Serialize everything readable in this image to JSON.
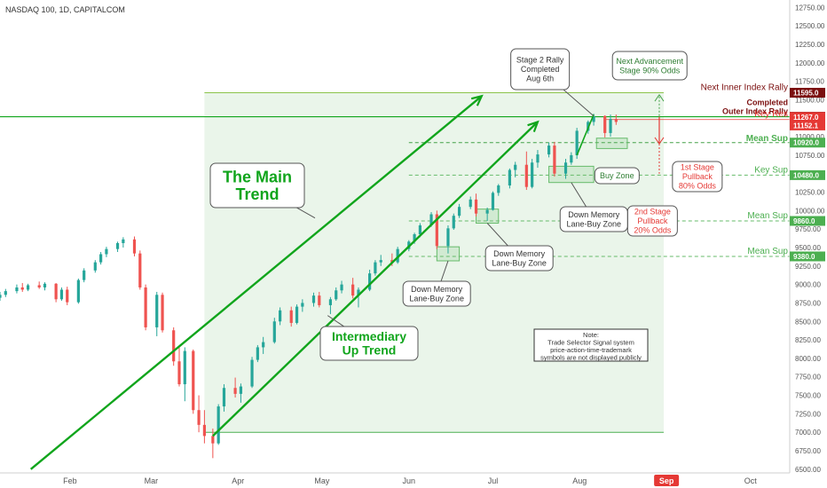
{
  "header": {
    "symbol": "NASDAQ 100, 1D, CAPITALCOM"
  },
  "chart_data": {
    "type": "candlestick",
    "symbol": "NASDAQ 100",
    "interval": "1D",
    "source": "CAPITALCOM",
    "y_axis": {
      "range": [
        6450,
        12850
      ],
      "ticks": [
        6500,
        6750,
        7000,
        7250,
        7500,
        7750,
        8000,
        8250,
        8500,
        8750,
        9000,
        9250,
        9500,
        9750,
        10000,
        10250,
        10500,
        10750,
        11000,
        11250,
        11500,
        11750,
        12000,
        12250,
        12500,
        12750
      ]
    },
    "x_axis": {
      "months": [
        {
          "label": "Feb",
          "date": "2020-02-01"
        },
        {
          "label": "Mar",
          "date": "2020-03-01"
        },
        {
          "label": "Apr",
          "date": "2020-04-01"
        },
        {
          "label": "May",
          "date": "2020-05-01"
        },
        {
          "label": "Jun",
          "date": "2020-06-01"
        },
        {
          "label": "Jul",
          "date": "2020-07-01"
        },
        {
          "label": "Aug",
          "date": "2020-08-01"
        },
        {
          "label": "Sep",
          "date": "2020-09-01"
        },
        {
          "label": "Oct",
          "date": "2020-10-01"
        }
      ],
      "highlighted_month": "Sep",
      "start_date": "2020-01-07",
      "end_date": "2020-10-15"
    },
    "candles": [
      [
        "2020-01-07",
        8820,
        8900,
        8780,
        8860
      ],
      [
        "2020-01-09",
        8860,
        8940,
        8830,
        8910
      ],
      [
        "2020-01-13",
        8910,
        9000,
        8880,
        8960
      ],
      [
        "2020-01-15",
        8960,
        9020,
        8900,
        8930
      ],
      [
        "2020-01-17",
        8930,
        9010,
        8910,
        8990
      ],
      [
        "2020-01-21",
        8990,
        9040,
        8940,
        8960
      ],
      [
        "2020-01-23",
        8960,
        9030,
        8920,
        9010
      ],
      [
        "2020-01-27",
        9010,
        9020,
        8760,
        8800
      ],
      [
        "2020-01-29",
        8800,
        8960,
        8780,
        8930
      ],
      [
        "2020-01-31",
        8930,
        8970,
        8720,
        8760
      ],
      [
        "2020-02-04",
        8760,
        9080,
        8740,
        9060
      ],
      [
        "2020-02-06",
        9060,
        9220,
        9030,
        9190
      ],
      [
        "2020-02-10",
        9190,
        9330,
        9160,
        9300
      ],
      [
        "2020-02-12",
        9300,
        9440,
        9270,
        9410
      ],
      [
        "2020-02-14",
        9410,
        9510,
        9370,
        9480
      ],
      [
        "2020-02-18",
        9480,
        9580,
        9440,
        9560
      ],
      [
        "2020-02-20",
        9560,
        9640,
        9500,
        9610
      ],
      [
        "2020-02-24",
        9610,
        9650,
        9380,
        9420
      ],
      [
        "2020-02-26",
        9420,
        9460,
        8930,
        8960
      ],
      [
        "2020-02-28",
        8960,
        9000,
        8380,
        8420
      ],
      [
        "2020-03-03",
        8420,
        8900,
        8300,
        8860
      ],
      [
        "2020-03-05",
        8860,
        8890,
        8350,
        8380
      ],
      [
        "2020-03-09",
        8380,
        8420,
        7900,
        7960
      ],
      [
        "2020-03-11",
        7960,
        8150,
        7620,
        7650
      ],
      [
        "2020-03-13",
        7650,
        8150,
        7420,
        8100
      ],
      [
        "2020-03-16",
        8100,
        8120,
        7250,
        7300
      ],
      [
        "2020-03-18",
        7300,
        7500,
        7000,
        7100
      ],
      [
        "2020-03-20",
        7100,
        7300,
        6850,
        6950
      ],
      [
        "2020-03-23",
        6950,
        7050,
        6650,
        6850
      ],
      [
        "2020-03-25",
        6850,
        7380,
        6830,
        7350
      ],
      [
        "2020-03-27",
        7350,
        7650,
        7280,
        7600
      ],
      [
        "2020-03-31",
        7600,
        7740,
        7470,
        7520
      ],
      [
        "2020-04-02",
        7520,
        7660,
        7400,
        7620
      ],
      [
        "2020-04-06",
        7620,
        8020,
        7600,
        7980
      ],
      [
        "2020-04-08",
        7980,
        8180,
        7950,
        8150
      ],
      [
        "2020-04-10",
        8150,
        8290,
        8060,
        8220
      ],
      [
        "2020-04-14",
        8220,
        8550,
        8200,
        8500
      ],
      [
        "2020-04-16",
        8500,
        8690,
        8450,
        8650
      ],
      [
        "2020-04-20",
        8650,
        8700,
        8430,
        8480
      ],
      [
        "2020-04-22",
        8480,
        8730,
        8460,
        8700
      ],
      [
        "2020-04-24",
        8700,
        8800,
        8630,
        8750
      ],
      [
        "2020-04-28",
        8750,
        8890,
        8700,
        8850
      ],
      [
        "2020-04-30",
        8850,
        8900,
        8690,
        8720
      ],
      [
        "2020-05-04",
        8720,
        8830,
        8600,
        8800
      ],
      [
        "2020-05-06",
        8800,
        8960,
        8780,
        8920
      ],
      [
        "2020-05-08",
        8920,
        9050,
        8880,
        9000
      ],
      [
        "2020-05-12",
        9000,
        9090,
        8810,
        8850
      ],
      [
        "2020-05-14",
        8850,
        8960,
        8690,
        8930
      ],
      [
        "2020-05-18",
        8930,
        9200,
        8910,
        9150
      ],
      [
        "2020-05-20",
        9150,
        9330,
        9120,
        9300
      ],
      [
        "2020-05-22",
        9300,
        9400,
        9250,
        9330
      ],
      [
        "2020-05-26",
        9330,
        9420,
        9250,
        9300
      ],
      [
        "2020-05-28",
        9300,
        9510,
        9280,
        9480
      ],
      [
        "2020-06-01",
        9480,
        9600,
        9450,
        9580
      ],
      [
        "2020-06-03",
        9580,
        9700,
        9550,
        9680
      ],
      [
        "2020-06-05",
        9680,
        9830,
        9640,
        9800
      ],
      [
        "2020-06-09",
        9800,
        9980,
        9780,
        9950
      ],
      [
        "2020-06-11",
        9950,
        10000,
        9480,
        9520
      ],
      [
        "2020-06-15",
        9520,
        9800,
        9420,
        9760
      ],
      [
        "2020-06-17",
        9760,
        9960,
        9740,
        9930
      ],
      [
        "2020-06-19",
        9930,
        10090,
        9900,
        10050
      ],
      [
        "2020-06-23",
        10050,
        10190,
        10020,
        10150
      ],
      [
        "2020-06-25",
        10150,
        10230,
        9920,
        9960
      ],
      [
        "2020-06-29",
        9960,
        10040,
        9860,
        10010
      ],
      [
        "2020-07-01",
        10010,
        10260,
        10000,
        10240
      ],
      [
        "2020-07-03",
        10240,
        10360,
        10200,
        10340
      ],
      [
        "2020-07-07",
        10340,
        10570,
        10300,
        10550
      ],
      [
        "2020-07-09",
        10550,
        10660,
        10450,
        10620
      ],
      [
        "2020-07-13",
        10620,
        10800,
        10280,
        10320
      ],
      [
        "2020-07-15",
        10320,
        10700,
        10300,
        10650
      ],
      [
        "2020-07-17",
        10650,
        10820,
        10580,
        10760
      ],
      [
        "2020-07-21",
        10760,
        10920,
        10720,
        10880
      ],
      [
        "2020-07-23",
        10880,
        10930,
        10460,
        10500
      ],
      [
        "2020-07-27",
        10500,
        10700,
        10430,
        10650
      ],
      [
        "2020-07-29",
        10650,
        10790,
        10620,
        10750
      ],
      [
        "2020-07-31",
        10750,
        11120,
        10700,
        11080
      ],
      [
        "2020-08-04",
        11080,
        11220,
        11040,
        11200
      ],
      [
        "2020-08-06",
        11200,
        11310,
        11150,
        11280
      ],
      [
        "2020-08-10",
        11280,
        11290,
        10990,
        11050
      ],
      [
        "2020-08-12",
        11050,
        11300,
        11000,
        11240
      ],
      [
        "2020-08-14",
        11240,
        11300,
        11160,
        11200
      ]
    ],
    "series": [
      {
        "name": "The Main Trend",
        "type": "trendline",
        "points": [
          [
            "2020-01-18",
            6500
          ],
          [
            "2020-06-27",
            11550
          ]
        ]
      },
      {
        "name": "Intermediary Up Trend",
        "type": "trendline",
        "points": [
          [
            "2020-03-23",
            6950
          ],
          [
            "2020-07-17",
            11200
          ]
        ]
      },
      {
        "name": "Stage 2 Rally Completed Aug 6th",
        "type": "trendline",
        "points": [
          [
            "2020-07-31",
            10750
          ],
          [
            "2020-08-06",
            11300
          ]
        ]
      }
    ],
    "price_labels": [
      {
        "value": "11595.0",
        "line": 11595,
        "level": 11595,
        "kind": "dark",
        "note": "Next Inner Index Rally"
      },
      {
        "value": "11270.0",
        "line": 11270,
        "level": 11270,
        "kind": "dark",
        "note": "Completed Outer Index Rally"
      },
      {
        "value": "11267.0",
        "line": 11267,
        "level": 11232,
        "kind": "red",
        "note": "Key Res"
      },
      {
        "value": "11152.1",
        "line": 11152.1,
        "level": 11065,
        "kind": "red",
        "note": ""
      },
      {
        "value": "10920.0",
        "line": 10920,
        "level": 10905,
        "kind": "green",
        "note": "Mean Sup"
      },
      {
        "value": "10480.0",
        "line": 10480,
        "level": 10480,
        "kind": "green",
        "note": "Key Sup"
      },
      {
        "value": "9860.0",
        "line": 9860,
        "level": 9860,
        "kind": "green",
        "note": "Mean Sup"
      },
      {
        "value": "9380.0",
        "line": 9380,
        "level": 9380,
        "kind": "green",
        "note": "Mean Sup"
      }
    ],
    "zones": [
      {
        "name": "Down Memory Lane-Buy Zone",
        "x": [
          "2020-06-11",
          "2020-06-19"
        ],
        "y": [
          9320,
          9510
        ]
      },
      {
        "name": "Down Memory Lane-Buy Zone",
        "x": [
          "2020-06-25",
          "2020-07-03"
        ],
        "y": [
          9830,
          10020
        ]
      },
      {
        "name": "Down Memory Lane-Buy Zone",
        "x": [
          "2020-07-21",
          "2020-08-06"
        ],
        "y": [
          10380,
          10600
        ]
      },
      {
        "name": "Buy Zone",
        "x": [
          "2020-08-07",
          "2020-08-18"
        ],
        "y": [
          10840,
          10980
        ]
      }
    ],
    "annotations": [
      {
        "text": "The Main Trend",
        "lines": [
          "The Main",
          "Trend"
        ]
      },
      {
        "text": "Intermediary Up Trend",
        "lines": [
          "Intermediary",
          "Up Trend"
        ]
      },
      {
        "text": "Stage 2 Rally Completed Aug 6th",
        "lines": [
          "Stage 2 Rally",
          "Completed",
          "Aug 6th"
        ]
      },
      {
        "text": "Next Advancement Stage 90% Odds",
        "lines": [
          "Next Advancement",
          "Stage 90% Odds"
        ]
      },
      {
        "text": "1st Stage Pullback 80% Odds",
        "lines": [
          "1st Stage",
          "Pullback",
          "80% Odds"
        ]
      },
      {
        "text": "2nd Stage Pullback 20% Odds",
        "lines": [
          "2nd Stage",
          "Pullback",
          "20% Odds"
        ]
      },
      {
        "text": "Buy Zone",
        "lines": [
          "Buy Zone"
        ]
      },
      {
        "text": "Down Memory Lane-Buy Zone",
        "lines": [
          "Down Memory",
          "Lane-Buy Zone"
        ]
      },
      {
        "text": "Down Memory Lane-Buy Zone",
        "lines": [
          "Down Memory",
          "Lane-Buy Zone"
        ]
      },
      {
        "text": "Down Memory Lane-Buy Zone",
        "lines": [
          "Down Memory",
          "Lane-Buy Zone"
        ]
      },
      {
        "text": "Note: Trade Selector Signal system price-action-time-trademark symbols are not displayed publicly",
        "lines": [
          "Note:",
          "Trade Selector Signal system",
          "price-action-time-trademark",
          "symbols are not displayed publicly"
        ]
      }
    ],
    "colors": {
      "bull": "#26a69a",
      "bear": "#ef5350",
      "trend": "#11a51c",
      "res_dark": "#7b0f0f",
      "res_red": "#e53935",
      "sup_green": "#4caf50",
      "rally_box": "#eaf5ea",
      "axis_text": "#555555"
    },
    "grid": false
  }
}
